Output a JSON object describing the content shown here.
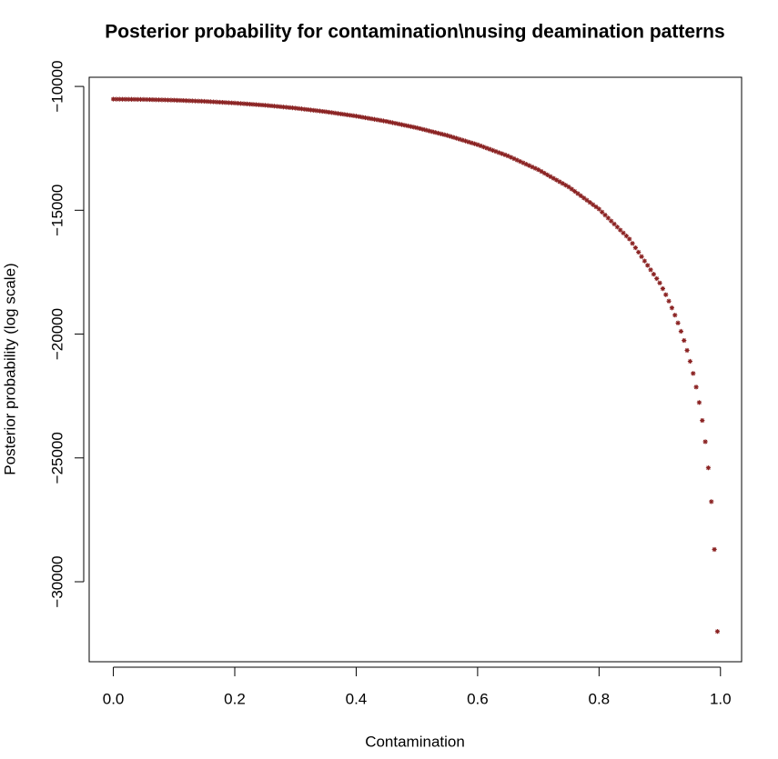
{
  "chart_data": {
    "type": "scatter",
    "title": "Posterior probability for contamination\\nusing deamination patterns",
    "x_label": "Contamination",
    "y_label": "Posterior probability (log scale)",
    "color": "#8b2323",
    "xlim": [
      -0.0398,
      1.0348
    ],
    "ylim": [
      -33230,
      -9630
    ],
    "xticks": [
      {
        "value": 0,
        "label": "0.0"
      },
      0.2,
      0.4,
      0.6,
      0.8,
      {
        "value": 1,
        "label": "1.0"
      }
    ],
    "yticks": [
      {
        "value": -10000,
        "label": "−10000"
      },
      {
        "value": -15000,
        "label": "−15000"
      },
      {
        "value": -20000,
        "label": "−20000"
      },
      {
        "value": -25000,
        "label": "−25000"
      },
      {
        "value": -30000,
        "label": "−30000"
      }
    ],
    "x": [
      0,
      0.005,
      0.01,
      0.015,
      0.02,
      0.025,
      0.03,
      0.035,
      0.04,
      0.045,
      0.05,
      0.055,
      0.06,
      0.065,
      0.07,
      0.075,
      0.08,
      0.085,
      0.09,
      0.095,
      0.1,
      0.105,
      0.11,
      0.115,
      0.12,
      0.125,
      0.13,
      0.135,
      0.14,
      0.145,
      0.15,
      0.155,
      0.16,
      0.165,
      0.17,
      0.175,
      0.18,
      0.185,
      0.19,
      0.195,
      0.2,
      0.205,
      0.21,
      0.215,
      0.22,
      0.225,
      0.23,
      0.235,
      0.24,
      0.245,
      0.25,
      0.255,
      0.26,
      0.265,
      0.27,
      0.275,
      0.28,
      0.285,
      0.29,
      0.295,
      0.3,
      0.305,
      0.31,
      0.315,
      0.32,
      0.325,
      0.33,
      0.335,
      0.34,
      0.345,
      0.35,
      0.355,
      0.36,
      0.365,
      0.37,
      0.375,
      0.38,
      0.385,
      0.39,
      0.395,
      0.4,
      0.405,
      0.41,
      0.415,
      0.42,
      0.425,
      0.43,
      0.435,
      0.44,
      0.445,
      0.45,
      0.455,
      0.46,
      0.465,
      0.47,
      0.475,
      0.48,
      0.485,
      0.49,
      0.495,
      0.5,
      0.505,
      0.51,
      0.515,
      0.52,
      0.525,
      0.53,
      0.535,
      0.54,
      0.545,
      0.55,
      0.555,
      0.56,
      0.565,
      0.57,
      0.575,
      0.58,
      0.585,
      0.59,
      0.595,
      0.6,
      0.605,
      0.61,
      0.615,
      0.62,
      0.625,
      0.63,
      0.635,
      0.64,
      0.645,
      0.65,
      0.655,
      0.66,
      0.665,
      0.67,
      0.675,
      0.68,
      0.685,
      0.69,
      0.695,
      0.7,
      0.705,
      0.71,
      0.715,
      0.72,
      0.725,
      0.73,
      0.735,
      0.74,
      0.745,
      0.75,
      0.755,
      0.76,
      0.765,
      0.77,
      0.775,
      0.78,
      0.785,
      0.79,
      0.795,
      0.8,
      0.805,
      0.81,
      0.815,
      0.82,
      0.825,
      0.83,
      0.835,
      0.84,
      0.845,
      0.85,
      0.855,
      0.86,
      0.865,
      0.87,
      0.875,
      0.88,
      0.885,
      0.89,
      0.895,
      0.9,
      0.905,
      0.91,
      0.915,
      0.92,
      0.925,
      0.93,
      0.935,
      0.94,
      0.945,
      0.95,
      0.955,
      0.96,
      0.965,
      0.97,
      0.975,
      0.98,
      0.985,
      0.99,
      0.995
    ],
    "values": [
      -10514,
      -10515,
      -10516,
      -10518,
      -10519,
      -10520,
      -10521,
      -10522,
      -10524,
      -10525,
      -10526,
      -10529,
      -10532,
      -10535,
      -10538,
      -10541,
      -10543,
      -10546,
      -10549,
      -10552,
      -10555,
      -10560,
      -10564,
      -10569,
      -10574,
      -10579,
      -10583,
      -10588,
      -10593,
      -10597,
      -10602,
      -10609,
      -10616,
      -10623,
      -10630,
      -10637,
      -10643,
      -10650,
      -10657,
      -10664,
      -10671,
      -10680,
      -10689,
      -10698,
      -10707,
      -10716,
      -10725,
      -10734,
      -10743,
      -10752,
      -10761,
      -10773,
      -10784,
      -10796,
      -10807,
      -10819,
      -10831,
      -10842,
      -10854,
      -10865,
      -10877,
      -10892,
      -10906,
      -10921,
      -10935,
      -10950,
      -10964,
      -10979,
      -10993,
      -11008,
      -11022,
      -11040,
      -11057,
      -11075,
      -11093,
      -11111,
      -11128,
      -11146,
      -11164,
      -11181,
      -11199,
      -11220,
      -11242,
      -11263,
      -11285,
      -11306,
      -11327,
      -11349,
      -11370,
      -11392,
      -11413,
      -11439,
      -11465,
      -11490,
      -11516,
      -11542,
      -11568,
      -11594,
      -11619,
      -11645,
      -11671,
      -11702,
      -11733,
      -11764,
      -11795,
      -11826,
      -11856,
      -11887,
      -11918,
      -11949,
      -11980,
      -12017,
      -12055,
      -12092,
      -12130,
      -12167,
      -12204,
      -12242,
      -12279,
      -12317,
      -12354,
      -12399,
      -12445,
      -12490,
      -12535,
      -12581,
      -12626,
      -12671,
      -12716,
      -12762,
      -12807,
      -12863,
      -12918,
      -12974,
      -13029,
      -13085,
      -13141,
      -13196,
      -13252,
      -13307,
      -13363,
      -13432,
      -13502,
      -13571,
      -13641,
      -13710,
      -13779,
      -13849,
      -13918,
      -13988,
      -14057,
      -14147,
      -14236,
      -14326,
      -14415,
      -14505,
      -14594,
      -14684,
      -14773,
      -14863,
      -14952,
      -15073,
      -15194,
      -15314,
      -15435,
      -15556,
      -15677,
      -15798,
      -15918,
      -16039,
      -16160,
      -16338,
      -16515,
      -16693,
      -16871,
      -17049,
      -17226,
      -17404,
      -17582,
      -17759,
      -17937,
      -18167,
      -18410,
      -18668,
      -18942,
      -19235,
      -19550,
      -19889,
      -20257,
      -20658,
      -21100,
      -21589,
      -22138,
      -22763,
      -23487,
      -24346,
      -25401,
      -26766,
      -28696,
      -32007
    ]
  }
}
